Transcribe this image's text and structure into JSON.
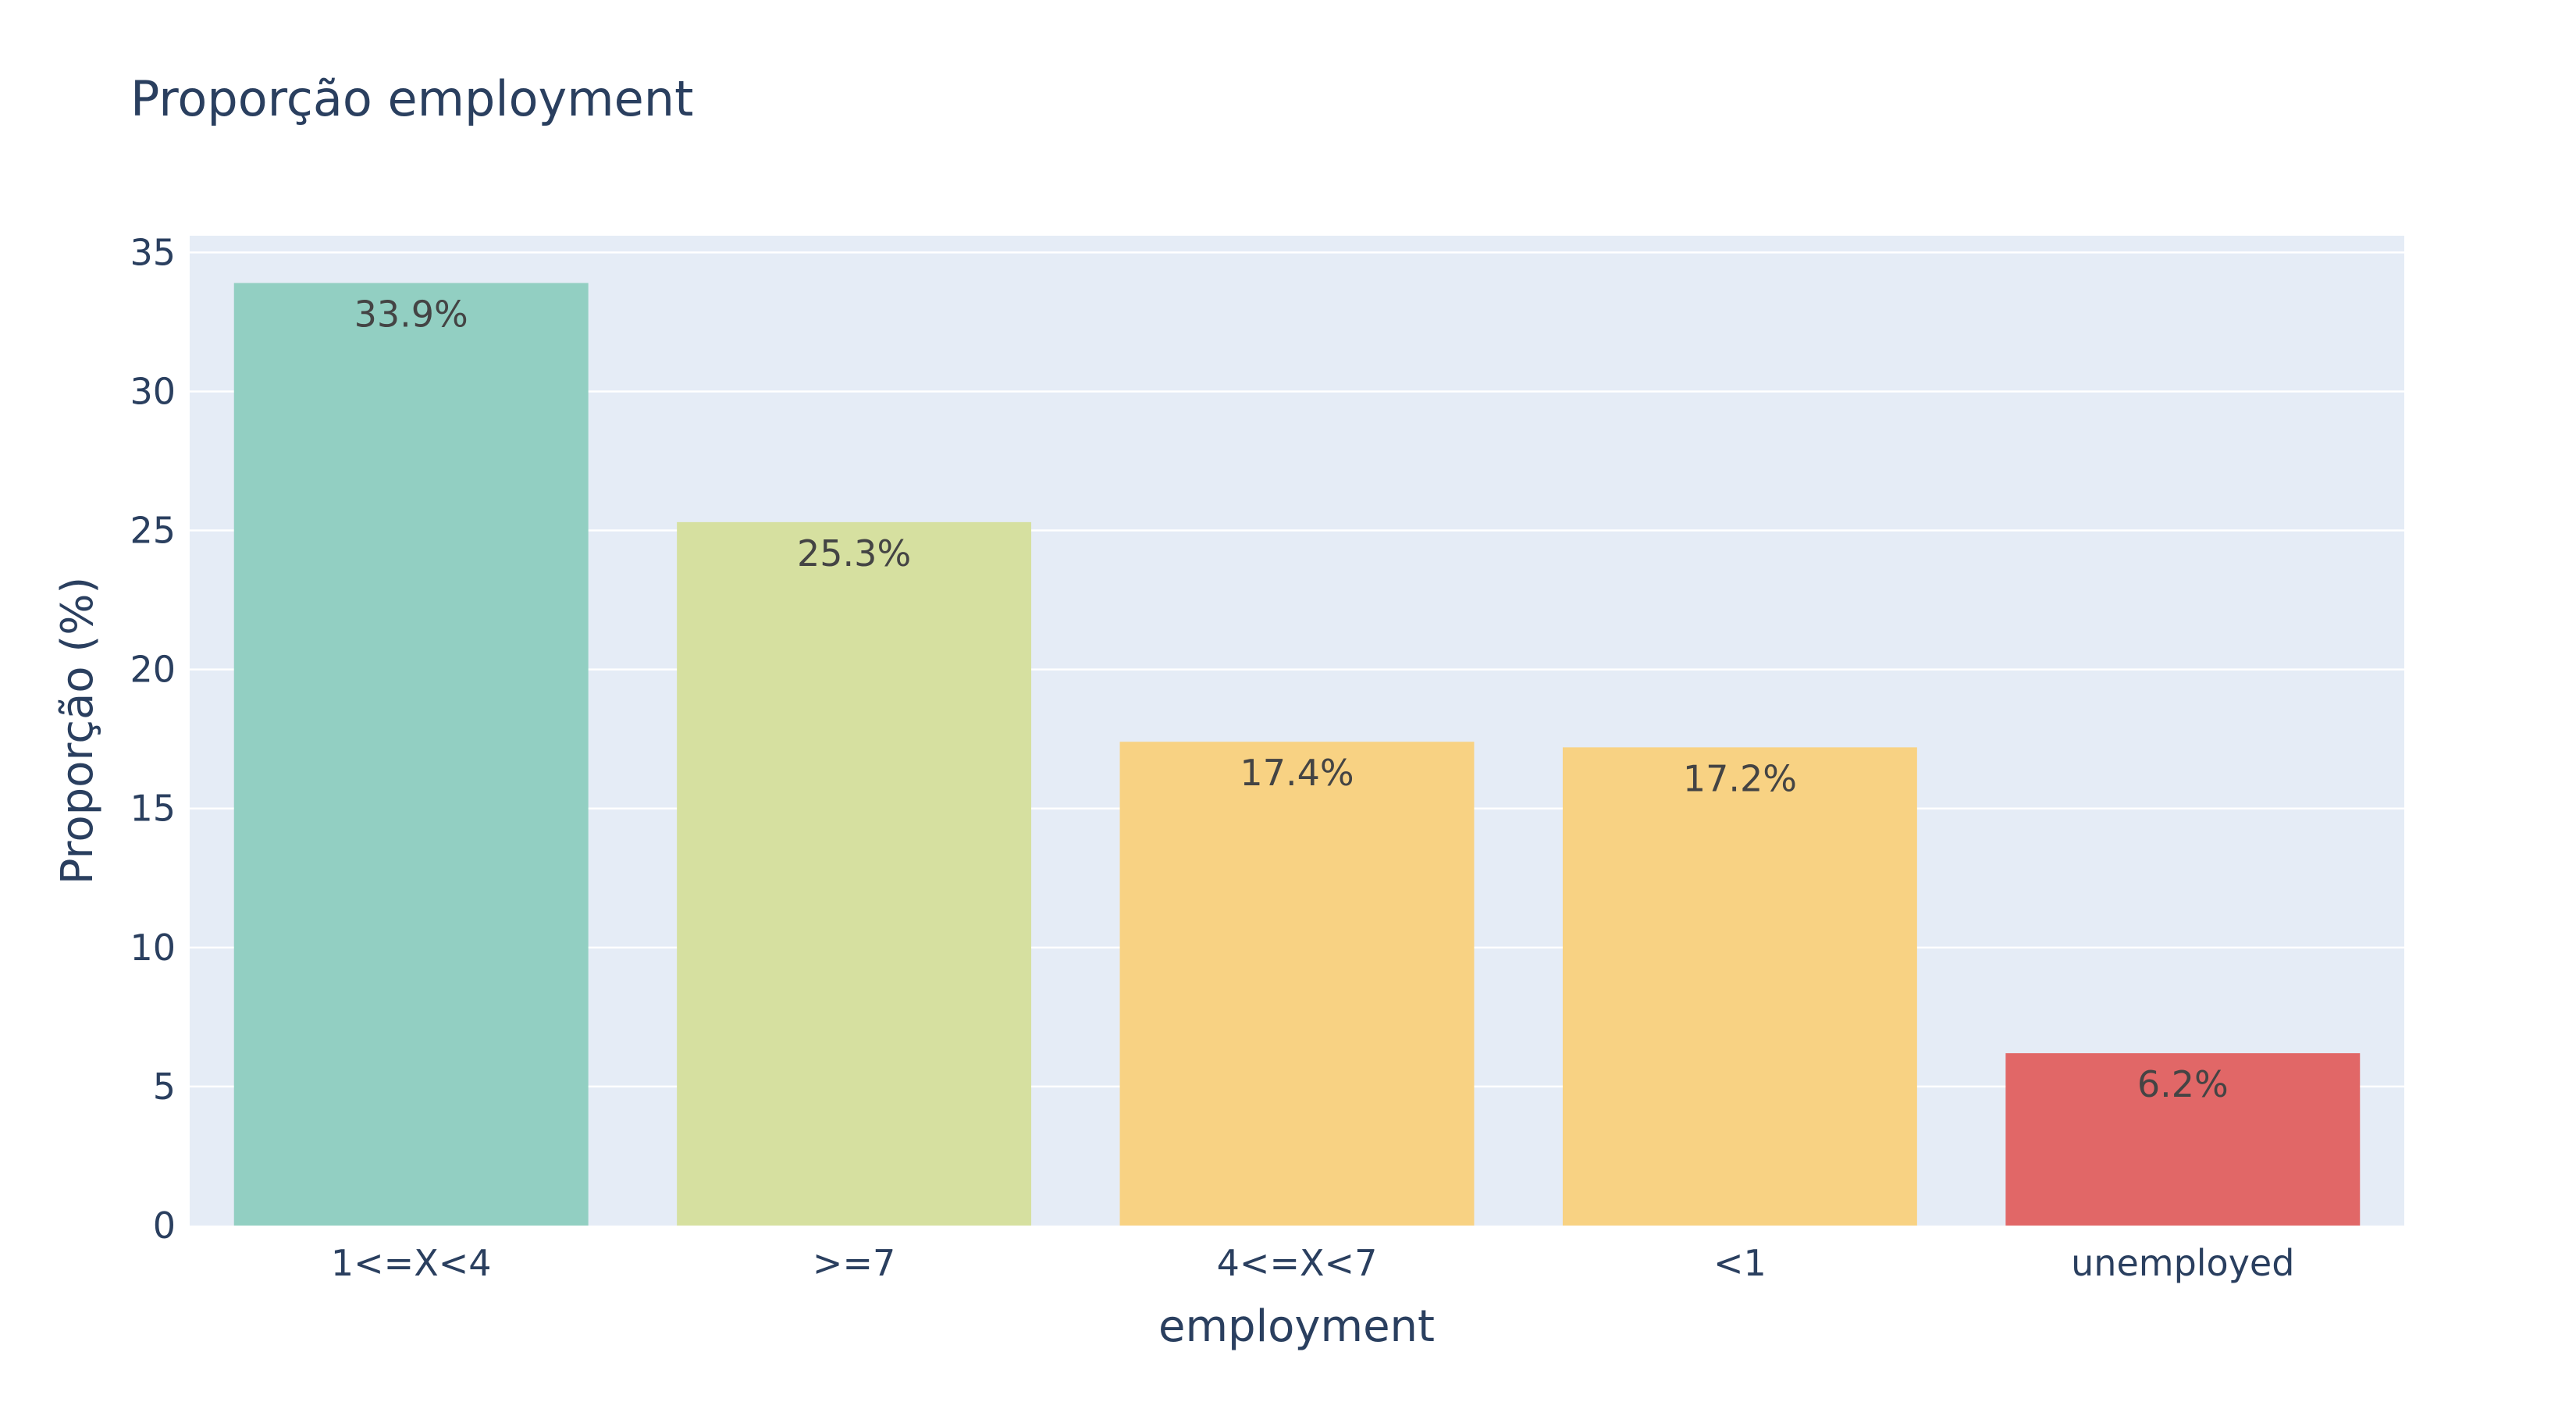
{
  "chart_data": {
    "type": "bar",
    "title": "Proporção employment",
    "xlabel": "employment",
    "ylabel": "Proporção (%)",
    "categories": [
      "1<=X<4",
      ">=7",
      "4<=X<7",
      "<1",
      "unemployed"
    ],
    "values": [
      33.9,
      25.3,
      17.4,
      17.2,
      6.2
    ],
    "value_labels": [
      "33.9%",
      "25.3%",
      "17.4%",
      "17.2%",
      "6.2%"
    ],
    "colors": [
      "#92cfc2",
      "#d6e0a0",
      "#f8d283",
      "#f8d283",
      "#e16767"
    ],
    "ylim": [
      0,
      35.6
    ],
    "yticks": [
      0,
      5,
      10,
      15,
      20,
      25,
      30,
      35
    ],
    "ytick_labels": [
      "0",
      "5",
      "10",
      "15",
      "20",
      "25",
      "30",
      "35"
    ],
    "grid": true,
    "legend": "none",
    "plot_background": "#e5ecf6"
  }
}
